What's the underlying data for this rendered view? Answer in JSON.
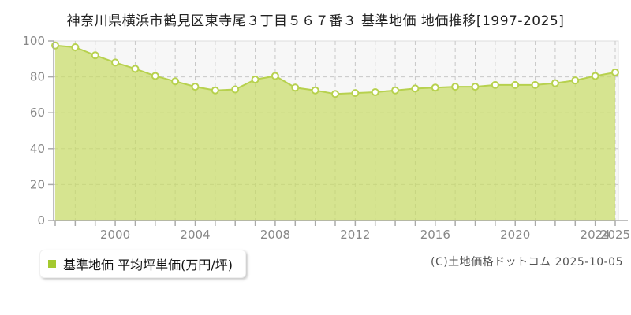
{
  "header": {
    "title": "神奈川県横浜市鶴見区東寺尾３丁目５６７番３ 基準地価 地価推移[1997-2025]"
  },
  "legend": {
    "label": "基準地価 平均坪単価(万円/坪)",
    "marker_color": "#a4c92f"
  },
  "footer": {
    "copyright": "(C)土地価格ドットコム 2025-10-05"
  },
  "chart_data": {
    "type": "area",
    "title": "神奈川県横浜市鶴見区東寺尾３丁目５６７番３ 基準地価 地価推移[1997-2025]",
    "series_name": "基準地価 平均坪単価(万円/坪)",
    "x": [
      1997,
      1998,
      1999,
      2000,
      2001,
      2002,
      2003,
      2004,
      2005,
      2006,
      2007,
      2008,
      2009,
      2010,
      2011,
      2012,
      2013,
      2014,
      2015,
      2016,
      2017,
      2018,
      2019,
      2020,
      2021,
      2022,
      2023,
      2024,
      2025
    ],
    "values": [
      97.5,
      96.5,
      92,
      88,
      84.5,
      80.5,
      77.5,
      74.5,
      72.5,
      73,
      78.5,
      80.5,
      74,
      72.5,
      70.5,
      71,
      71.5,
      72.5,
      73.5,
      74,
      74.5,
      74.5,
      75.5,
      75.5,
      75.5,
      76.5,
      78,
      80.5,
      82.5
    ],
    "xlabel": "",
    "ylabel": "",
    "ylim": [
      0,
      100
    ],
    "yticks": [
      0,
      20,
      40,
      60,
      80,
      100
    ],
    "xtick_labels": [
      "2000",
      "2004",
      "2008",
      "2012",
      "2016",
      "2020",
      "2024",
      "2025"
    ],
    "grid": "dashed",
    "legend_position": "bottom-left",
    "colors": {
      "line": "#b7d14e",
      "area_fill": "#c8dc64",
      "area_fill_opacity": 0.7,
      "marker_fill": "#ffffff",
      "marker_stroke": "#b7d14e",
      "grid": "#c8c8c8",
      "axis": "#aaaaaa",
      "tick_label": "#888888",
      "plot_background": "#f7f7f7",
      "plot_border": "#dddddd"
    }
  }
}
